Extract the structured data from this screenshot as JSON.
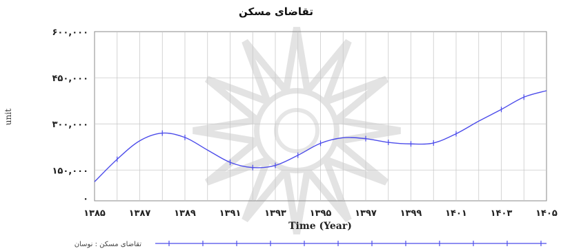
{
  "chart_data": {
    "type": "line",
    "title": "تقاضای مسکن",
    "xlabel": "Time (Year)",
    "ylabel": "unit",
    "x": [
      1385,
      1386,
      1387,
      1388,
      1389,
      1390,
      1391,
      1392,
      1393,
      1394,
      1395,
      1396,
      1397,
      1398,
      1399,
      1400,
      1401,
      1402,
      1403,
      1404,
      1405
    ],
    "xlim": [
      1385,
      1405
    ],
    "ylim": [
      50000,
      600000
    ],
    "x_ticks": [
      1385,
      1387,
      1389,
      1391,
      1393,
      1395,
      1397,
      1399,
      1401,
      1403,
      1405
    ],
    "x_tick_labels": [
      "۱۳۸۵",
      "۱۳۸۷",
      "۱۳۸۹",
      "۱۳۹۱",
      "۱۳۹۳",
      "۱۳۹۵",
      "۱۳۹۷",
      "۱۳۹۹",
      "۱۴۰۱",
      "۱۴۰۳",
      "۱۴۰۵"
    ],
    "y_ticks": [
      0,
      150000,
      300000,
      450000,
      600000
    ],
    "y_tick_labels": [
      "۰",
      "۱۵۰,۰۰۰",
      "۳۰۰,۰۰۰",
      "۴۵۰,۰۰۰",
      "۶۰۰,۰۰۰"
    ],
    "grid": true,
    "legend_position": "bottom",
    "series": [
      {
        "name": "تقاضای مسکن : نوسان",
        "color": "#4b4bea",
        "values": [
          112000,
          185000,
          245000,
          270000,
          256000,
          215000,
          175000,
          158000,
          165000,
          198000,
          237000,
          255000,
          252000,
          240000,
          235000,
          238000,
          268000,
          309000,
          347000,
          387000,
          408000
        ],
        "markers_x": [
          1386,
          1388,
          1389,
          1391,
          1392,
          1393,
          1394,
          1395,
          1397,
          1398,
          1399,
          1400,
          1401,
          1403,
          1404
        ]
      }
    ]
  }
}
